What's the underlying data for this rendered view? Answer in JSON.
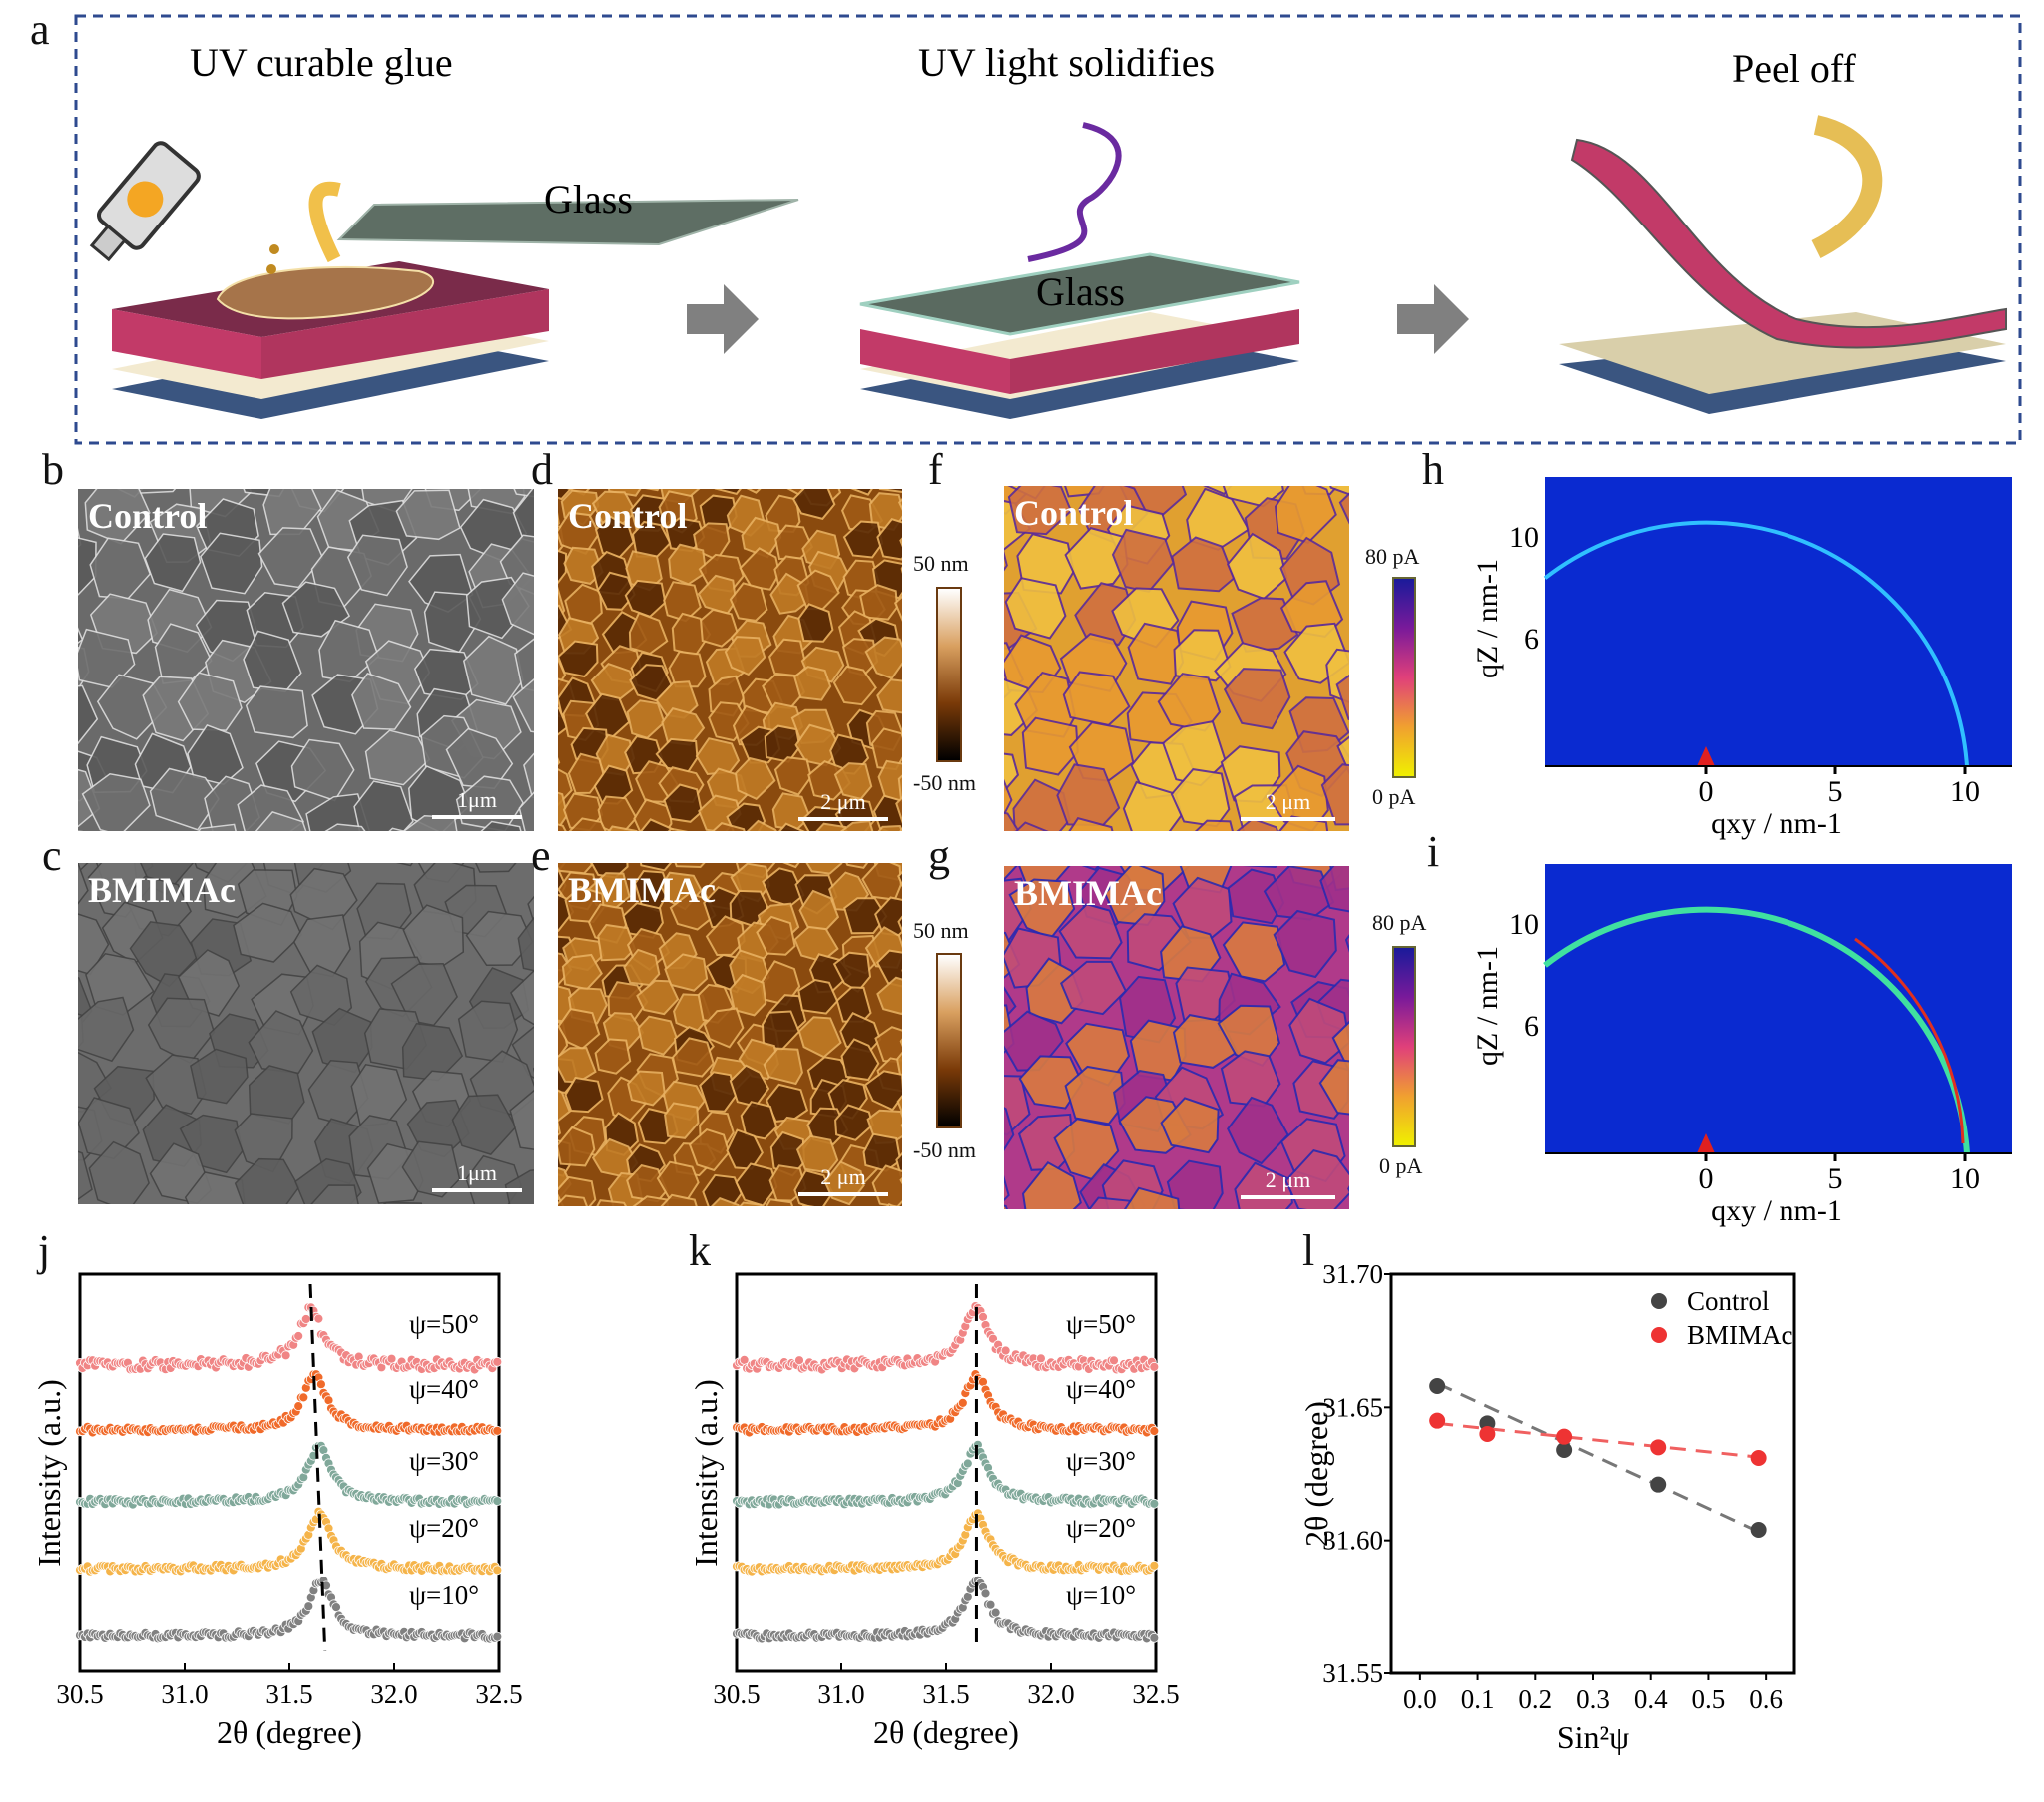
{
  "panels": {
    "a": "a",
    "b": "b",
    "c": "c",
    "d": "d",
    "e": "e",
    "f": "f",
    "g": "g",
    "h": "h",
    "i": "i",
    "j": "j",
    "k": "k",
    "l": "l"
  },
  "schematic": {
    "step1": "UV curable glue",
    "step2": "UV light solidifies",
    "step3": "Peel off",
    "glass1": "Glass",
    "glass2": "Glass"
  },
  "sem": {
    "control": "Control",
    "bmimac": "BMIMAc",
    "scale": "1μm"
  },
  "afm": {
    "control": "Control",
    "bmimac": "BMIMAc",
    "scale": "2 μm",
    "cb_max": "50 nm",
    "cb_min": "-50 nm"
  },
  "cafm": {
    "control": "Control",
    "bmimac": "BMIMAc",
    "scale": "2 μm",
    "cb_max": "80 pA",
    "cb_min": "0 pA"
  },
  "giwaxs": {
    "ylabel": "qZ / nm-1",
    "xlabel": "qxy / nm-1",
    "yticks": [
      "10",
      "6"
    ],
    "xticks": [
      "0",
      "5",
      "10"
    ]
  },
  "colors": {
    "psi10": "#808080",
    "psi20": "#f5b44a",
    "psi30": "#80a89a",
    "psi40": "#f06a2a",
    "psi50": "#f08585",
    "control": "#444444",
    "bmimac": "#ee3333"
  },
  "chart_data": [
    {
      "type": "scatter",
      "panel": "j",
      "title": "",
      "xlabel": "2θ (degree)",
      "ylabel": "Intensity (a.u.)",
      "xlim": [
        30.5,
        32.5
      ],
      "xticks": [
        "30.5",
        "31.0",
        "31.5",
        "32.0",
        "32.5"
      ],
      "series": [
        {
          "name": "ψ=10°",
          "peak": 31.65
        },
        {
          "name": "ψ=20°",
          "peak": 31.645
        },
        {
          "name": "ψ=30°",
          "peak": 31.64
        },
        {
          "name": "ψ=40°",
          "peak": 31.62
        },
        {
          "name": "ψ=50°",
          "peak": 31.6
        }
      ],
      "reference_line": [
        31.6,
        31.67
      ]
    },
    {
      "type": "scatter",
      "panel": "k",
      "title": "",
      "xlabel": "2θ (degree)",
      "ylabel": "Intensity (a.u.)",
      "xlim": [
        30.5,
        32.5
      ],
      "xticks": [
        "30.5",
        "31.0",
        "31.5",
        "32.0",
        "32.5"
      ],
      "series": [
        {
          "name": "ψ=10°",
          "peak": 31.645
        },
        {
          "name": "ψ=20°",
          "peak": 31.645
        },
        {
          "name": "ψ=30°",
          "peak": 31.645
        },
        {
          "name": "ψ=40°",
          "peak": 31.645
        },
        {
          "name": "ψ=50°",
          "peak": 31.645
        }
      ],
      "reference_line": [
        31.645,
        31.645
      ]
    },
    {
      "type": "scatter",
      "panel": "l",
      "title": "",
      "xlabel": "Sin²ψ",
      "ylabel": "2θ (degree)",
      "xlim": [
        -0.05,
        0.65
      ],
      "ylim": [
        31.55,
        31.7
      ],
      "xticks": [
        "0.0",
        "0.1",
        "0.2",
        "0.3",
        "0.4",
        "0.5",
        "0.6"
      ],
      "yticks": [
        "31.55",
        "31.60",
        "31.65",
        "31.70"
      ],
      "legend": "top-right",
      "x": [
        0.03,
        0.117,
        0.25,
        0.413,
        0.587
      ],
      "series": [
        {
          "name": "Control",
          "y": [
            31.658,
            31.644,
            31.634,
            31.621,
            31.604
          ],
          "fit": [
            31.659,
            31.602
          ]
        },
        {
          "name": "BMIMAc",
          "y": [
            31.645,
            31.64,
            31.639,
            31.635,
            31.631
          ],
          "fit": [
            31.644,
            31.631
          ]
        }
      ]
    }
  ]
}
